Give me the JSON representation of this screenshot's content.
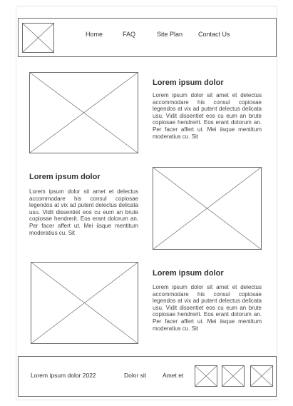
{
  "header": {
    "logo_icon": "image-placeholder-icon",
    "nav": [
      {
        "label": "Home"
      },
      {
        "label": "FAQ"
      },
      {
        "label": "Site Plan"
      },
      {
        "label": "Contact Us"
      }
    ]
  },
  "sections": [
    {
      "title": "Lorem ipsum dolor",
      "text": "Lorem ipsum dolor sit amet et delectus accommodare his consul copiosae legendos at vix ad putent delectus delicata usu. Vidit dissentiet eos cu eum an brute copiosae hendrerit. Eos erant dolorum an. Per facer affert ut. Mei iisque mentitum moderatius cu. Sit"
    },
    {
      "title": "Lorem ipsum dolor",
      "text": "Lorem ipsum dolor sit amet et delectus accommodare his consul copiosae legendos at vix ad putent delectus delicata usu. Vidit dissentiet eos cu eum an brute copiosae hendrerit. Eos erant dolorum an. Per facer affert ut. Mei iisque mentitum moderatius cu. Sit"
    },
    {
      "title": "Lorem ipsum dolor",
      "text": "Lorem ipsum dolor sit amet et delectus accommodare his consul copiosae legendos at vix ad putent delectus delicata usu. Vidit dissentiet eos cu eum an brute copiosae hendrerit. Eos erant dolorum an. Per facer affert ut. Mei iisque mentitum moderatius cu. Sit"
    }
  ],
  "footer": {
    "copyright": "Lorem ipsum dolor 2022",
    "link1": "Dolor sit",
    "link2": "Amet et",
    "social_icons": [
      "image-placeholder-icon",
      "image-placeholder-icon",
      "image-placeholder-icon"
    ]
  },
  "colors": {
    "border": "#6b6b6b",
    "text": "#333333"
  }
}
